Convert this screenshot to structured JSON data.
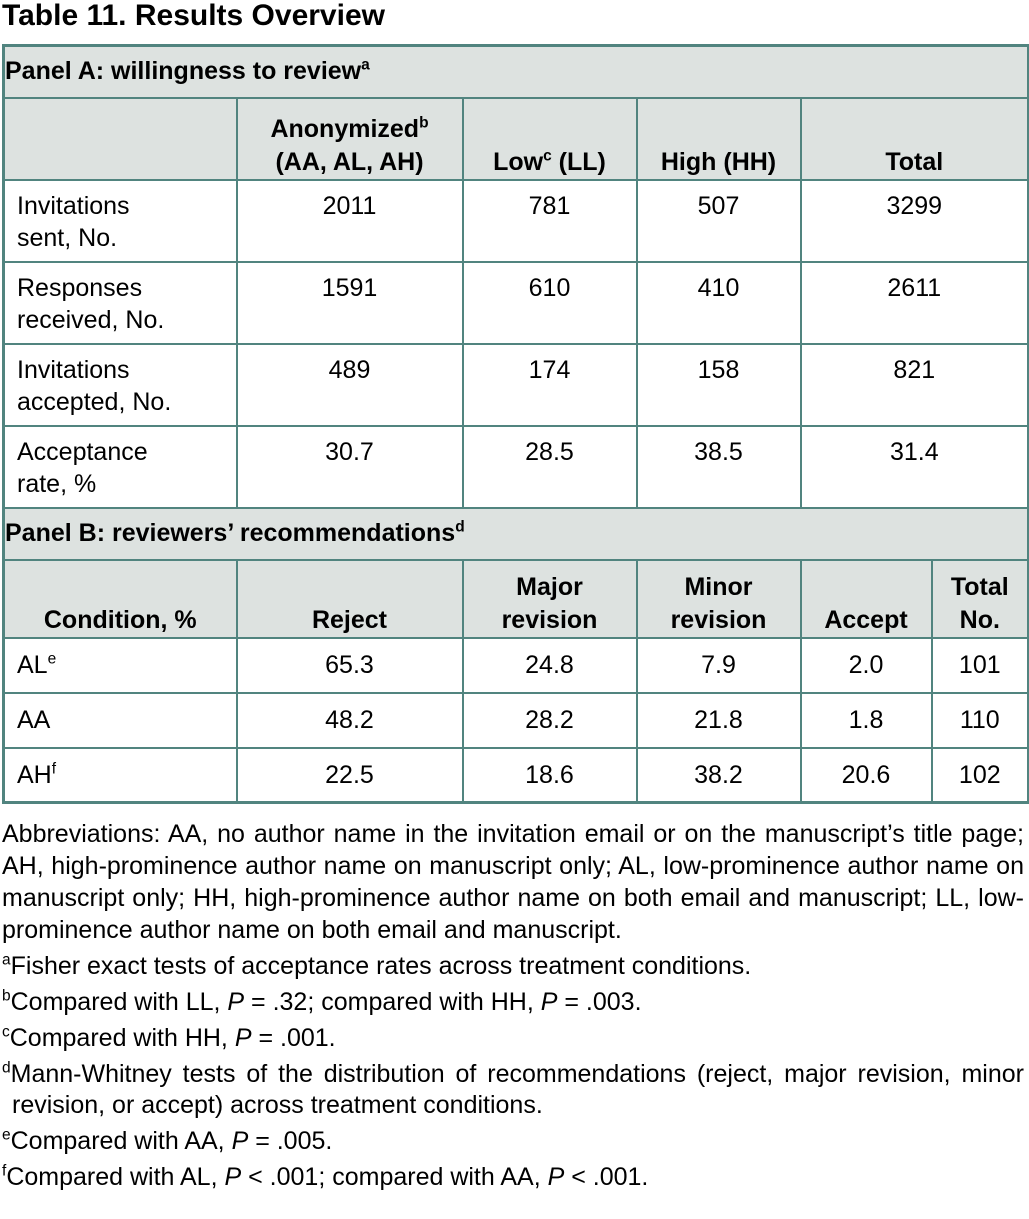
{
  "page_title": "Table 11. Results Overview",
  "colors": {
    "table_border": "#51847f",
    "header_bg": "#dde2e0",
    "text": "#000000"
  },
  "panel_a": {
    "heading": [
      {
        "t": "Panel A: willingness to review"
      },
      {
        "t": "a",
        "sup": true
      }
    ],
    "columns": [
      [],
      [
        {
          "t": "Anonymized"
        },
        {
          "t": "b",
          "sup": true
        },
        {
          "br": true
        },
        {
          "t": "(AA, AL, AH)"
        }
      ],
      [
        {
          "t": "Low"
        },
        {
          "t": "c",
          "sup": true
        },
        {
          "t": " (LL)"
        }
      ],
      [
        {
          "t": "High (HH)"
        }
      ],
      [
        {
          "t": "Total"
        }
      ]
    ],
    "rows": [
      {
        "label": [
          {
            "t": "Invitations"
          },
          {
            "br": true
          },
          {
            "t": "sent, No."
          }
        ],
        "values": [
          "2011",
          "781",
          "507",
          "3299"
        ]
      },
      {
        "label": [
          {
            "t": "Responses"
          },
          {
            "br": true
          },
          {
            "t": "received, No."
          }
        ],
        "values": [
          "1591",
          "610",
          "410",
          "2611"
        ]
      },
      {
        "label": [
          {
            "t": "Invitations"
          },
          {
            "br": true
          },
          {
            "t": "accepted, No."
          }
        ],
        "values": [
          "489",
          "174",
          "158",
          "821"
        ]
      },
      {
        "label": [
          {
            "t": "Acceptance"
          },
          {
            "br": true
          },
          {
            "t": "rate, %"
          }
        ],
        "values": [
          "30.7",
          "28.5",
          "38.5",
          "31.4"
        ]
      }
    ]
  },
  "panel_b": {
    "heading": [
      {
        "t": "Panel B: reviewers’ recommendations"
      },
      {
        "t": "d",
        "sup": true
      }
    ],
    "columns": [
      [
        {
          "t": "Condition, %"
        }
      ],
      [
        {
          "t": "Reject"
        }
      ],
      [
        {
          "t": "Major"
        },
        {
          "br": true
        },
        {
          "t": "revision"
        }
      ],
      [
        {
          "t": "Minor"
        },
        {
          "br": true
        },
        {
          "t": "revision"
        }
      ],
      [
        {
          "t": "Accept"
        }
      ],
      [
        {
          "t": "Total"
        },
        {
          "br": true
        },
        {
          "t": "No."
        }
      ]
    ],
    "rows": [
      {
        "label": [
          {
            "t": "AL"
          },
          {
            "t": "e",
            "sup": true
          }
        ],
        "values": [
          "65.3",
          "24.8",
          "7.9",
          "2.0",
          "101"
        ]
      },
      {
        "label": [
          {
            "t": "AA"
          }
        ],
        "values": [
          "48.2",
          "28.2",
          "21.8",
          "1.8",
          "110"
        ]
      },
      {
        "label": [
          {
            "t": "AH"
          },
          {
            "t": "f",
            "sup": true
          }
        ],
        "values": [
          "22.5",
          "18.6",
          "38.2",
          "20.6",
          "102"
        ]
      }
    ]
  },
  "notes": {
    "abbreviations": [
      {
        "t": "Abbreviations: AA, no author name in the invitation email or on the manuscript’s title page; AH, high-prominence author name on manuscript only; AL, low-prominence author name on manuscript only; HH, high-prominence author name on both email and manuscript; LL, low-prominence author name on both email and manuscript."
      }
    ],
    "footnotes": [
      [
        {
          "t": "a",
          "sup": true
        },
        {
          "t": "Fisher exact tests of acceptance rates across treatment conditions."
        }
      ],
      [
        {
          "t": "b",
          "sup": true
        },
        {
          "t": "Compared with LL, "
        },
        {
          "t": "P",
          "i": true
        },
        {
          "t": " = .32; compared with HH, "
        },
        {
          "t": "P",
          "i": true
        },
        {
          "t": " = .003."
        }
      ],
      [
        {
          "t": "c",
          "sup": true
        },
        {
          "t": "Compared with HH, "
        },
        {
          "t": "P",
          "i": true
        },
        {
          "t": " = .001."
        }
      ],
      [
        {
          "t": "d",
          "sup": true
        },
        {
          "t": "Mann-Whitney tests of the distribution of recommendations (reject, major revision, minor revision, or accept) across treatment conditions."
        }
      ],
      [
        {
          "t": "e",
          "sup": true
        },
        {
          "t": "Compared with AA, "
        },
        {
          "t": "P",
          "i": true
        },
        {
          "t": " = .005."
        }
      ],
      [
        {
          "t": "f",
          "sup": true
        },
        {
          "t": "Compared with AL, "
        },
        {
          "t": "P",
          "i": true
        },
        {
          "t": " < .001; compared with AA, "
        },
        {
          "t": "P",
          "i": true
        },
        {
          "t": " < .001."
        }
      ]
    ]
  }
}
